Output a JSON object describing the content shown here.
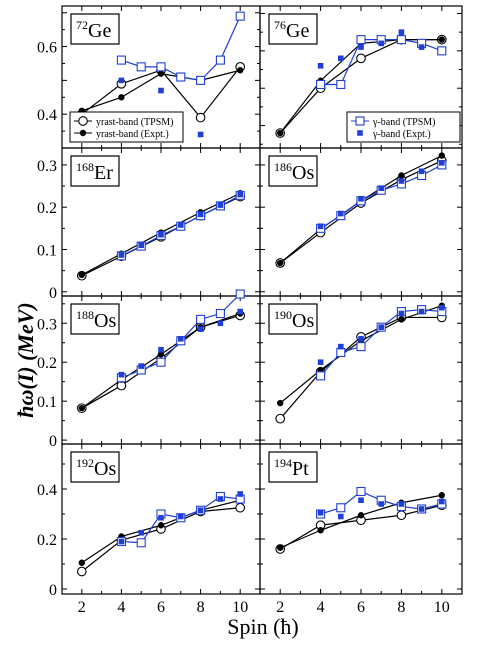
{
  "figure": {
    "ylabel": "ħω(I) (MeV)",
    "xlabel": "Spin (ħ)",
    "x_ticks": [
      2,
      4,
      6,
      8,
      10
    ],
    "colors": {
      "theory_yrast": "#000000",
      "expt_yrast": "#000000",
      "theory_gamma": "#1f3fd6",
      "expt_gamma": "#1f3fd6"
    }
  },
  "chart_data": [
    {
      "type": "line",
      "nucleus": "72Ge",
      "mass": "72",
      "element": "Ge",
      "xlim": [
        1,
        11
      ],
      "ylim": [
        0.3,
        0.72
      ],
      "yticks": [
        0.4,
        0.6
      ],
      "legend": {
        "placement": "bottom-left",
        "entries": [
          "yrast-band (TPSM)",
          "yrast-band (Expt.)"
        ]
      },
      "series": [
        {
          "name": "yrast-band (TPSM)",
          "x": [
            2,
            4,
            6,
            8,
            10
          ],
          "y": [
            0.4,
            0.49,
            0.53,
            0.39,
            0.54
          ]
        },
        {
          "name": "yrast-band (Expt.)",
          "x": [
            2,
            4,
            6,
            8,
            10
          ],
          "y": [
            0.41,
            0.45,
            0.52,
            0.5,
            0.53
          ]
        },
        {
          "x": [
            4,
            5,
            6,
            7,
            8,
            9,
            10
          ],
          "y": [
            0.56,
            0.54,
            0.54,
            0.51,
            0.5,
            0.56,
            0.69
          ]
        },
        {
          "x": [
            4,
            6,
            8
          ],
          "y": [
            0.5,
            0.47,
            0.34
          ]
        }
      ]
    },
    {
      "type": "line",
      "nucleus": "76Ge",
      "mass": "76",
      "element": "Ge",
      "xlim": [
        1,
        11
      ],
      "ylim": [
        0.24,
        0.62
      ],
      "yticks": [],
      "legend": {
        "placement": "bottom-right",
        "entries": [
          "γ-band (TPSM)",
          "γ-band (Expt.)"
        ]
      },
      "series": [
        {
          "x": [
            2,
            4,
            6,
            8,
            10
          ],
          "y": [
            0.28,
            0.4,
            0.48,
            0.53,
            0.53
          ]
        },
        {
          "x": [
            2,
            4,
            6,
            8,
            10
          ],
          "y": [
            0.28,
            0.42,
            0.52,
            0.53,
            0.53
          ]
        },
        {
          "name": "γ-band (TPSM)",
          "x": [
            4,
            5,
            6,
            7,
            8,
            9,
            10
          ],
          "y": [
            0.41,
            0.41,
            0.53,
            0.53,
            0.53,
            0.52,
            0.5
          ]
        },
        {
          "name": "γ-band (Expt.)",
          "x": [
            4,
            5,
            6,
            7,
            8,
            9
          ],
          "y": [
            0.46,
            0.48,
            0.51,
            0.52,
            0.55,
            0.51
          ]
        }
      ]
    },
    {
      "type": "line",
      "nucleus": "168Er",
      "mass": "168",
      "element": "Er",
      "xlim": [
        1,
        11
      ],
      "ylim": [
        -0.01,
        0.34
      ],
      "yticks": [
        0,
        0.1,
        0.2,
        0.3
      ],
      "series": [
        {
          "x": [
            2,
            4,
            6,
            8,
            10
          ],
          "y": [
            0.038,
            0.084,
            0.13,
            0.18,
            0.225
          ]
        },
        {
          "x": [
            2,
            4,
            6,
            8,
            10
          ],
          "y": [
            0.04,
            0.09,
            0.14,
            0.188,
            0.233
          ]
        },
        {
          "x": [
            4,
            5,
            6,
            7,
            8,
            9,
            10
          ],
          "y": [
            0.085,
            0.108,
            0.133,
            0.155,
            0.18,
            0.203,
            0.228
          ]
        },
        {
          "x": [
            4,
            5,
            6,
            7,
            8,
            9,
            10
          ],
          "y": [
            0.087,
            0.11,
            0.135,
            0.158,
            0.183,
            0.205,
            0.23
          ]
        }
      ]
    },
    {
      "type": "line",
      "nucleus": "186Os",
      "mass": "186",
      "element": "Os",
      "xlim": [
        1,
        11
      ],
      "ylim": [
        -0.01,
        0.34
      ],
      "yticks": [],
      "series": [
        {
          "x": [
            2,
            4,
            6,
            8,
            10
          ],
          "y": [
            0.068,
            0.14,
            0.21,
            0.265,
            0.31
          ]
        },
        {
          "x": [
            2,
            4,
            6,
            8,
            10
          ],
          "y": [
            0.068,
            0.148,
            0.215,
            0.275,
            0.322
          ]
        },
        {
          "x": [
            4,
            5,
            6,
            7,
            8,
            9,
            10
          ],
          "y": [
            0.15,
            0.18,
            0.215,
            0.24,
            0.255,
            0.275,
            0.3
          ]
        },
        {
          "x": [
            4,
            5,
            6,
            7,
            8,
            9,
            10
          ],
          "y": [
            0.155,
            0.185,
            0.22,
            0.245,
            0.262,
            0.285,
            0.305
          ]
        }
      ]
    },
    {
      "type": "line",
      "nucleus": "188Os",
      "mass": "188",
      "element": "Os",
      "xlim": [
        1,
        11
      ],
      "ylim": [
        -0.01,
        0.37
      ],
      "yticks": [
        0,
        0.1,
        0.2,
        0.3
      ],
      "series": [
        {
          "x": [
            2,
            4,
            6,
            8,
            10
          ],
          "y": [
            0.082,
            0.14,
            0.21,
            0.29,
            0.32
          ]
        },
        {
          "x": [
            2,
            4,
            6,
            8,
            10
          ],
          "y": [
            0.082,
            0.155,
            0.22,
            0.29,
            0.325
          ]
        },
        {
          "x": [
            4,
            5,
            6,
            7,
            8,
            9,
            10
          ],
          "y": [
            0.16,
            0.18,
            0.2,
            0.255,
            0.31,
            0.325,
            0.375
          ]
        },
        {
          "x": [
            4,
            5,
            6,
            7,
            8,
            9,
            10
          ],
          "y": [
            0.168,
            0.19,
            0.232,
            0.26,
            0.285,
            0.3,
            0.33
          ]
        }
      ]
    },
    {
      "type": "line",
      "nucleus": "190Os",
      "mass": "190",
      "element": "Os",
      "xlim": [
        1,
        11
      ],
      "ylim": [
        -0.01,
        0.37
      ],
      "yticks": [],
      "series": [
        {
          "x": [
            2,
            4,
            6,
            8,
            10
          ],
          "y": [
            0.055,
            0.175,
            0.265,
            0.315,
            0.315
          ]
        },
        {
          "x": [
            2,
            4,
            6,
            8,
            10
          ],
          "y": [
            0.095,
            0.18,
            0.255,
            0.31,
            0.345
          ]
        },
        {
          "x": [
            4,
            5,
            6,
            7,
            8,
            9,
            10
          ],
          "y": [
            0.165,
            0.225,
            0.24,
            0.29,
            0.33,
            0.335,
            0.33
          ]
        },
        {
          "x": [
            4,
            5,
            6,
            7,
            8,
            9,
            10
          ],
          "y": [
            0.2,
            0.24,
            0.26,
            0.29,
            0.325,
            0.33,
            0.34
          ]
        }
      ]
    },
    {
      "type": "line",
      "nucleus": "192Os",
      "mass": "192",
      "element": "Os",
      "xlim": [
        1,
        11
      ],
      "ylim": [
        -0.02,
        0.58
      ],
      "yticks": [
        0,
        0.2,
        0.4
      ],
      "series": [
        {
          "x": [
            2,
            4,
            6,
            8,
            10
          ],
          "y": [
            0.07,
            0.195,
            0.24,
            0.31,
            0.325
          ]
        },
        {
          "x": [
            2,
            4,
            6,
            8,
            10
          ],
          "y": [
            0.105,
            0.21,
            0.255,
            0.315,
            0.355
          ]
        },
        {
          "x": [
            4,
            5,
            6,
            7,
            8,
            9,
            10
          ],
          "y": [
            0.19,
            0.185,
            0.3,
            0.285,
            0.315,
            0.37,
            0.36
          ]
        },
        {
          "x": [
            4,
            5,
            6,
            7,
            8,
            9,
            10
          ],
          "y": [
            0.19,
            0.225,
            0.285,
            0.29,
            0.315,
            0.36,
            0.38
          ]
        }
      ]
    },
    {
      "type": "line",
      "nucleus": "194Pt",
      "mass": "194",
      "element": "Pt",
      "xlim": [
        1,
        11
      ],
      "ylim": [
        -0.02,
        0.58
      ],
      "yticks": [],
      "series": [
        {
          "x": [
            2,
            4,
            6,
            8,
            10
          ],
          "y": [
            0.16,
            0.255,
            0.275,
            0.295,
            0.335
          ]
        },
        {
          "x": [
            2,
            4,
            6,
            8,
            10
          ],
          "y": [
            0.165,
            0.235,
            0.295,
            0.345,
            0.375
          ]
        },
        {
          "x": [
            4,
            5,
            6,
            7,
            8,
            9,
            10
          ],
          "y": [
            0.3,
            0.325,
            0.39,
            0.355,
            0.33,
            0.32,
            0.34
          ]
        },
        {
          "x": [
            4,
            5,
            6,
            7,
            8,
            9,
            10
          ],
          "y": [
            0.305,
            0.29,
            0.355,
            0.34,
            0.34,
            0.32,
            0.35
          ]
        }
      ]
    }
  ]
}
